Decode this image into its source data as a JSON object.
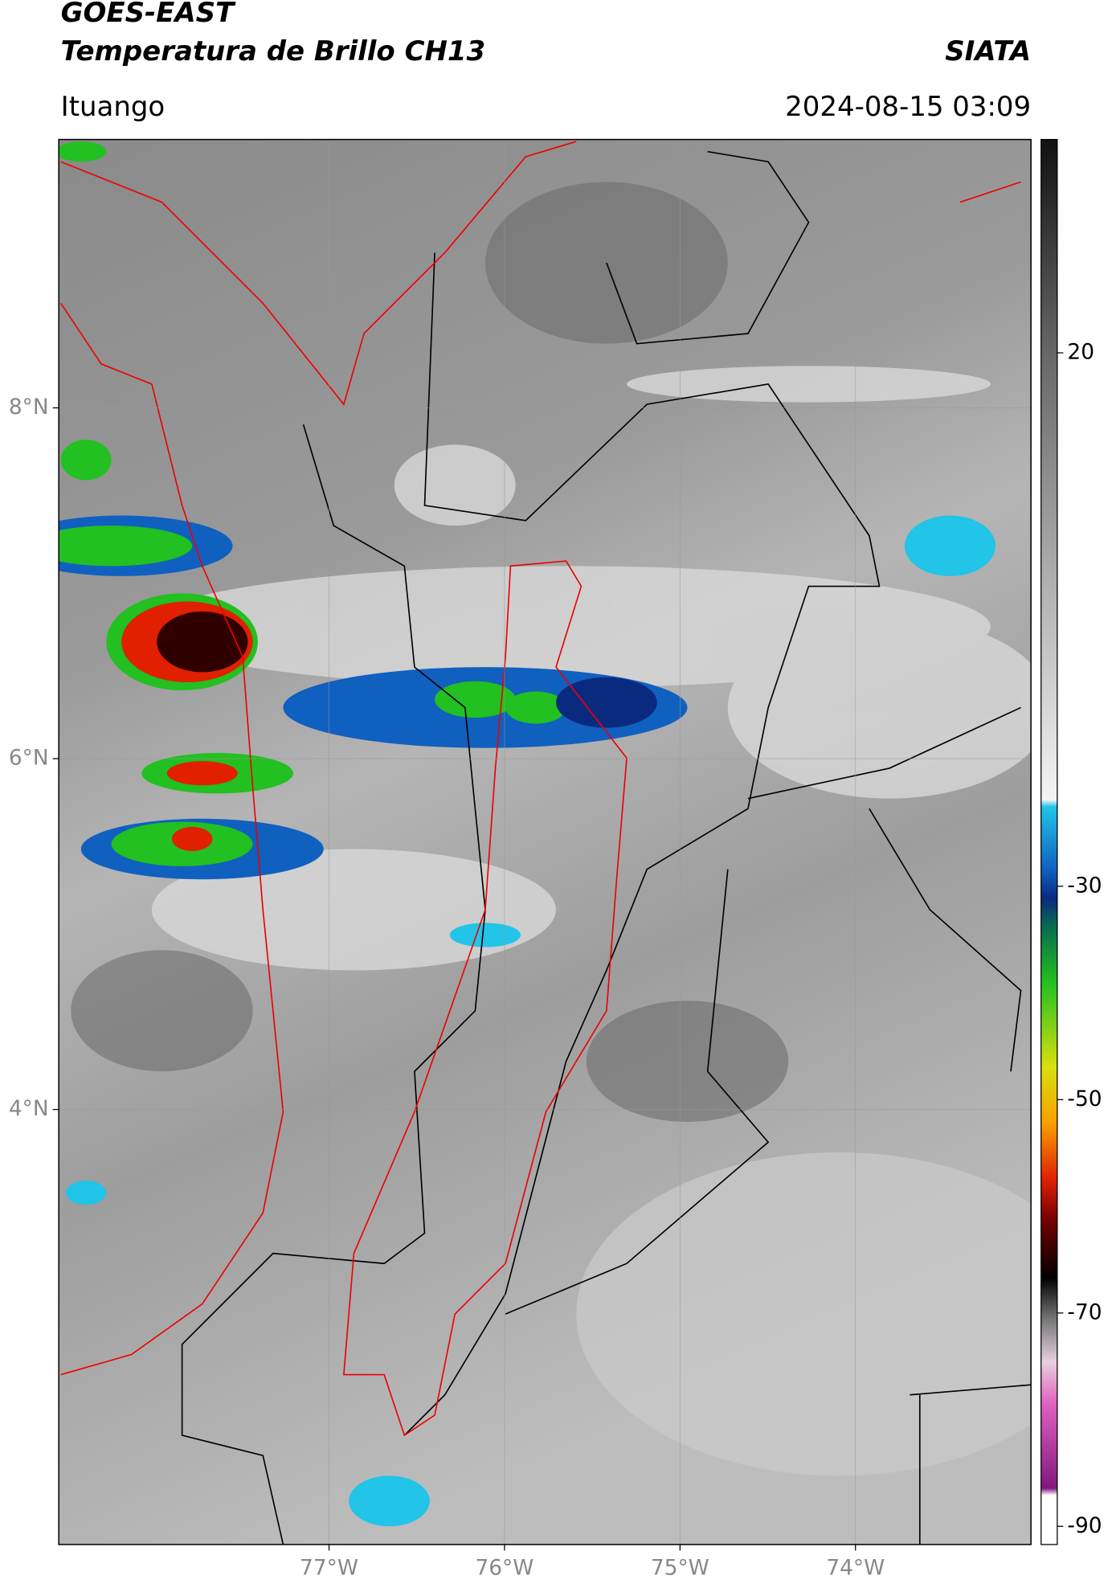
{
  "header": {
    "title": "GOES-EAST",
    "subtitle": "Temperatura de Brillo CH13",
    "source": "SIATA",
    "location": "Ituango",
    "datetime": "2024-08-15 03:09"
  },
  "map": {
    "xlim": [
      -78.54,
      -73.0
    ],
    "ylim": [
      1.52,
      9.53
    ],
    "xticks": [
      {
        "value": -77,
        "label": "77°W"
      },
      {
        "value": -76,
        "label": "76°W"
      },
      {
        "value": -75,
        "label": "75°W"
      },
      {
        "value": -74,
        "label": "74°W"
      }
    ],
    "yticks": [
      {
        "value": 8,
        "label": "8°N"
      },
      {
        "value": 6,
        "label": "6°N"
      },
      {
        "value": 4,
        "label": "4°N"
      }
    ]
  },
  "colorbar": {
    "lim": [
      -91.7,
      40
    ],
    "ticks": [
      20,
      -30,
      -50,
      -70,
      -90
    ]
  }
}
